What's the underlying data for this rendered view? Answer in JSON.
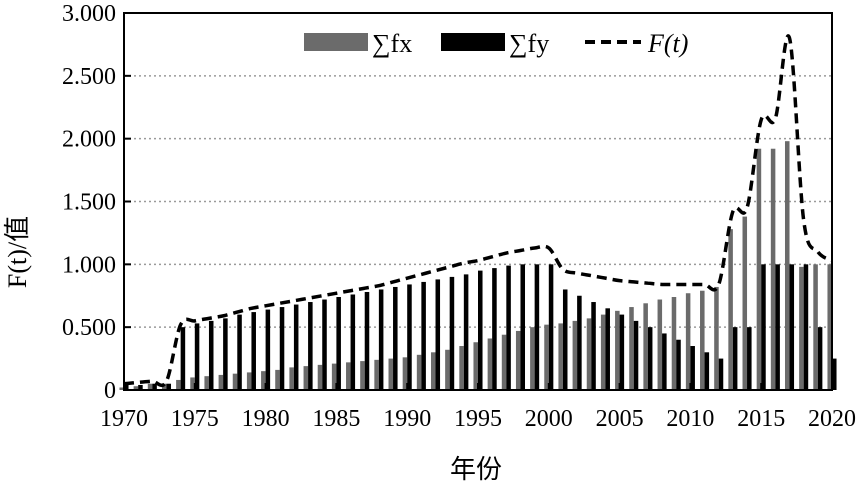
{
  "chart_data": {
    "type": "bar",
    "title": "",
    "xlabel": "年份",
    "ylabel": "F(t)/值",
    "xlim": [
      1970,
      2020
    ],
    "ylim": [
      0,
      3
    ],
    "x_ticks": [
      1970,
      1975,
      1980,
      1985,
      1990,
      1995,
      2000,
      2005,
      2010,
      2015,
      2020
    ],
    "x_tick_labels": [
      "1970",
      "1975",
      "1980",
      "1985",
      "1990",
      "1995",
      "2000",
      "2005",
      "2010",
      "2015",
      "2020"
    ],
    "y_ticks": [
      0,
      0.5,
      1,
      1.5,
      2,
      2.5,
      3
    ],
    "y_tick_labels": [
      "0",
      "0.500",
      "1.000",
      "1.500",
      "2.000",
      "2.500",
      "3.000"
    ],
    "grid": "horizontal-dotted",
    "legend_position": "top-right",
    "x": [
      1970,
      1971,
      1972,
      1973,
      1974,
      1975,
      1976,
      1977,
      1978,
      1979,
      1980,
      1981,
      1982,
      1983,
      1984,
      1985,
      1986,
      1987,
      1988,
      1989,
      1990,
      1991,
      1992,
      1993,
      1994,
      1995,
      1996,
      1997,
      1998,
      1999,
      2000,
      2001,
      2002,
      2003,
      2004,
      2005,
      2006,
      2007,
      2008,
      2009,
      2010,
      2011,
      2012,
      2013,
      2014,
      2015,
      2016,
      2017,
      2018,
      2019,
      2020
    ],
    "series": [
      {
        "name": "∑fx",
        "kind": "bar",
        "color": "#6b6b6b",
        "values": [
          0.02,
          0.03,
          0.05,
          0.05,
          0.08,
          0.1,
          0.11,
          0.12,
          0.13,
          0.14,
          0.15,
          0.16,
          0.18,
          0.19,
          0.2,
          0.21,
          0.22,
          0.23,
          0.24,
          0.25,
          0.26,
          0.28,
          0.3,
          0.32,
          0.35,
          0.38,
          0.41,
          0.44,
          0.47,
          0.5,
          0.52,
          0.53,
          0.55,
          0.57,
          0.6,
          0.63,
          0.66,
          0.69,
          0.72,
          0.74,
          0.77,
          0.79,
          0.82,
          1.28,
          1.38,
          1.92,
          1.92,
          1.98,
          0.98,
          1.0,
          1.0
        ]
      },
      {
        "name": "∑fy",
        "kind": "bar",
        "color": "#000000",
        "values": [
          0.04,
          0.04,
          0.05,
          0.05,
          0.5,
          0.53,
          0.55,
          0.57,
          0.6,
          0.62,
          0.64,
          0.66,
          0.68,
          0.7,
          0.72,
          0.74,
          0.76,
          0.78,
          0.8,
          0.82,
          0.84,
          0.86,
          0.88,
          0.9,
          0.92,
          0.95,
          0.97,
          0.99,
          1.0,
          1.0,
          1.0,
          0.8,
          0.75,
          0.7,
          0.65,
          0.6,
          0.55,
          0.5,
          0.45,
          0.4,
          0.35,
          0.3,
          0.25,
          0.5,
          0.5,
          1.0,
          1.0,
          1.0,
          1.0,
          0.5,
          0.25
        ]
      },
      {
        "name": "F(t)",
        "kind": "line",
        "style": "dashed",
        "color": "#000000",
        "values": [
          0.05,
          0.06,
          0.07,
          0.07,
          0.52,
          0.55,
          0.57,
          0.59,
          0.62,
          0.65,
          0.67,
          0.69,
          0.71,
          0.73,
          0.75,
          0.77,
          0.79,
          0.81,
          0.83,
          0.86,
          0.89,
          0.92,
          0.95,
          0.98,
          1.01,
          1.03,
          1.06,
          1.09,
          1.11,
          1.13,
          1.13,
          0.96,
          0.93,
          0.91,
          0.89,
          0.87,
          0.86,
          0.85,
          0.84,
          0.84,
          0.84,
          0.84,
          0.84,
          1.42,
          1.45,
          2.15,
          2.16,
          2.8,
          1.35,
          1.1,
          1.03
        ]
      }
    ]
  }
}
